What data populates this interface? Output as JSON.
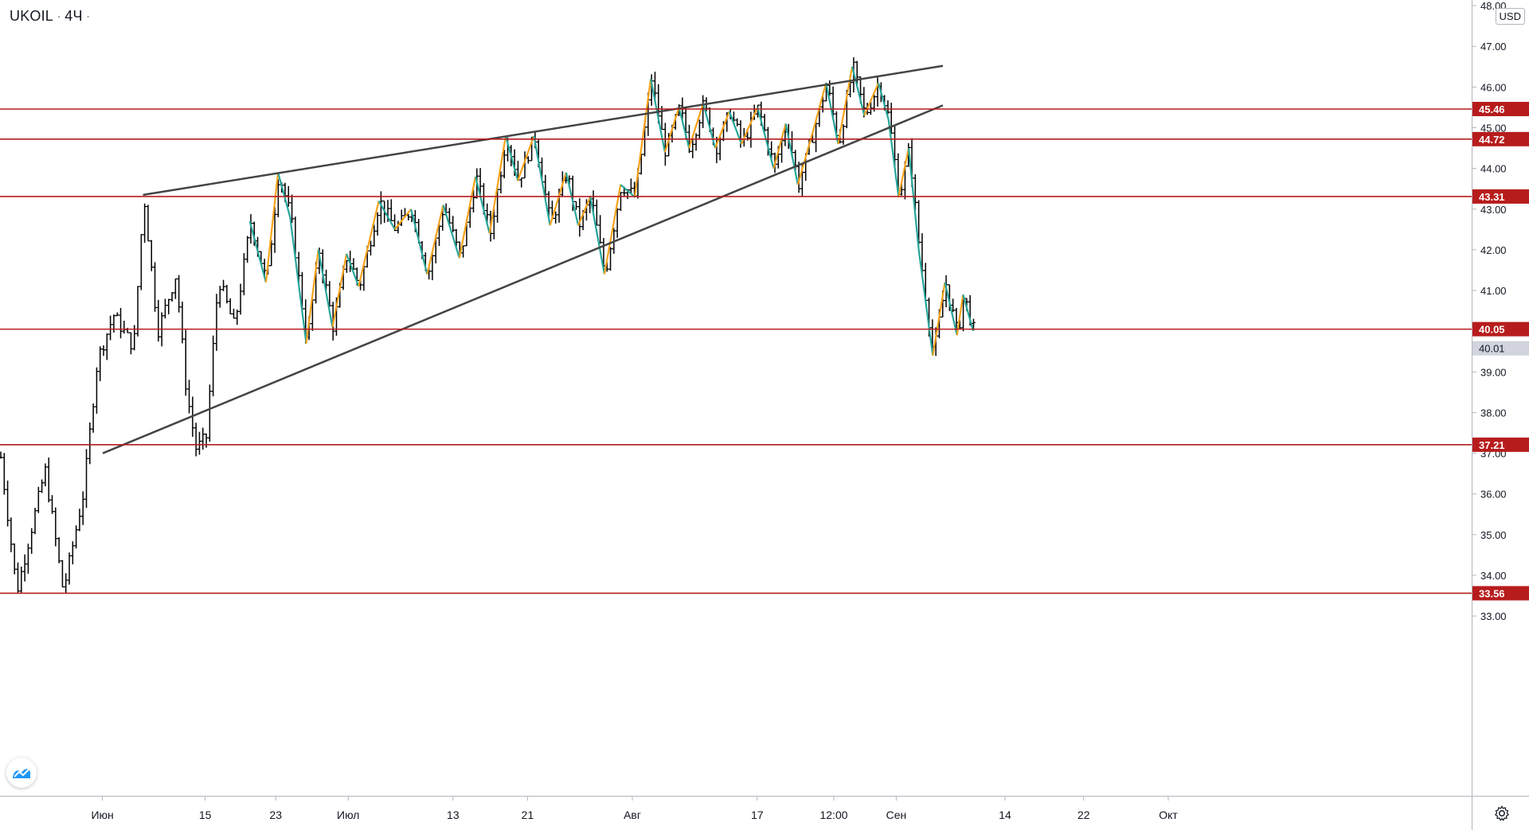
{
  "header": {
    "symbol": "UKOIL",
    "interval": "4Ч",
    "separator": "·"
  },
  "price_axis": {
    "currency": "USD",
    "ticks": [
      "48.00",
      "47.00",
      "46.00",
      "45.00",
      "44.00",
      "43.00",
      "42.00",
      "41.00",
      "39.00",
      "38.00",
      "37.00",
      "36.00",
      "35.00",
      "34.00",
      "33.00"
    ]
  },
  "time_axis": {
    "labels": [
      "Июн",
      "15",
      "23",
      "Июл",
      "13",
      "21",
      "Авг",
      "17",
      "12:00",
      "Сен",
      "14",
      "22",
      "Окт"
    ]
  },
  "colors": {
    "level_line": "#b71c1c",
    "level_badge": "#b71c1c",
    "trendline": "#444444",
    "zigzag_up": "#f7a21b",
    "zigzag_down": "#26a69a",
    "bars": "#000000",
    "current_price_badge": "#d1d4dc"
  },
  "icons": {
    "logo": "tradingview-logo-icon",
    "settings": "gear-icon"
  },
  "chart_data": {
    "type": "ohlc",
    "symbol": "UKOIL",
    "interval": "4Ч",
    "ylim": [
      32.2,
      48.1
    ],
    "current_price": 40.01,
    "horizontal_levels": [
      45.46,
      44.72,
      43.31,
      40.05,
      37.21,
      33.56
    ],
    "trendlines": [
      {
        "name": "",
        "points": [
          [
            7.1,
            43.35
          ],
          [
            46.8,
            46.52
          ]
        ]
      },
      {
        "name": "",
        "points": [
          [
            5.1,
            37.0
          ],
          [
            46.8,
            45.55
          ]
        ]
      }
    ],
    "swing_points": [
      {
        "x": 0,
        "price": 36.9
      },
      {
        "x": 0.8,
        "price": 33.6
      },
      {
        "x": 2.2,
        "price": 36.6
      },
      {
        "x": 3.1,
        "price": 33.6
      },
      {
        "x": 4.1,
        "price": 36.0
      },
      {
        "x": 4.8,
        "price": 39.3
      },
      {
        "x": 5.6,
        "price": 40.4
      },
      {
        "x": 6.6,
        "price": 39.6
      },
      {
        "x": 7.1,
        "price": 43.35
      },
      {
        "x": 7.8,
        "price": 40.0
      },
      {
        "x": 8.7,
        "price": 41.4
      },
      {
        "x": 9.2,
        "price": 38.6
      },
      {
        "x": 9.7,
        "price": 37.1
      },
      {
        "x": 10.2,
        "price": 37.4
      },
      {
        "x": 10.8,
        "price": 41.3
      },
      {
        "x": 11.6,
        "price": 40.1
      },
      {
        "x": 12.4,
        "price": 42.7
      },
      {
        "x": 13.2,
        "price": 41.2
      },
      {
        "x": 13.8,
        "price": 43.9
      },
      {
        "x": 14.4,
        "price": 42.8
      },
      {
        "x": 15.2,
        "price": 39.7
      },
      {
        "x": 15.8,
        "price": 42.0
      },
      {
        "x": 16.5,
        "price": 40.1
      },
      {
        "x": 17.2,
        "price": 41.9
      },
      {
        "x": 17.8,
        "price": 41.1
      },
      {
        "x": 18.8,
        "price": 43.2
      },
      {
        "x": 19.6,
        "price": 42.5
      },
      {
        "x": 20.4,
        "price": 43.0
      },
      {
        "x": 21.2,
        "price": 41.4
      },
      {
        "x": 22.0,
        "price": 43.1
      },
      {
        "x": 22.8,
        "price": 41.8
      },
      {
        "x": 23.6,
        "price": 43.8
      },
      {
        "x": 24.3,
        "price": 42.4
      },
      {
        "x": 25.1,
        "price": 44.8
      },
      {
        "x": 25.7,
        "price": 43.7
      },
      {
        "x": 26.5,
        "price": 44.8
      },
      {
        "x": 27.3,
        "price": 42.6
      },
      {
        "x": 28.1,
        "price": 43.9
      },
      {
        "x": 28.7,
        "price": 42.6
      },
      {
        "x": 29.3,
        "price": 43.3
      },
      {
        "x": 30.0,
        "price": 41.4
      },
      {
        "x": 30.8,
        "price": 43.6
      },
      {
        "x": 31.5,
        "price": 43.3
      },
      {
        "x": 32.3,
        "price": 46.2
      },
      {
        "x": 33.0,
        "price": 44.4
      },
      {
        "x": 33.7,
        "price": 45.5
      },
      {
        "x": 34.2,
        "price": 44.5
      },
      {
        "x": 34.9,
        "price": 45.6
      },
      {
        "x": 35.5,
        "price": 44.5
      },
      {
        "x": 36.2,
        "price": 45.4
      },
      {
        "x": 36.8,
        "price": 44.6
      },
      {
        "x": 37.6,
        "price": 45.5
      },
      {
        "x": 38.4,
        "price": 44.0
      },
      {
        "x": 39.0,
        "price": 45.1
      },
      {
        "x": 39.6,
        "price": 43.6
      },
      {
        "x": 40.4,
        "price": 45.0
      },
      {
        "x": 41.0,
        "price": 46.1
      },
      {
        "x": 41.6,
        "price": 44.6
      },
      {
        "x": 42.3,
        "price": 46.5
      },
      {
        "x": 42.9,
        "price": 45.3
      },
      {
        "x": 43.6,
        "price": 46.1
      },
      {
        "x": 44.1,
        "price": 45.2
      },
      {
        "x": 44.6,
        "price": 43.3
      },
      {
        "x": 45.1,
        "price": 44.5
      },
      {
        "x": 45.6,
        "price": 42.0
      },
      {
        "x": 46.3,
        "price": 39.4
      },
      {
        "x": 46.9,
        "price": 41.2
      },
      {
        "x": 47.5,
        "price": 39.9
      },
      {
        "x": 47.8,
        "price": 40.9
      },
      {
        "x": 48.3,
        "price": 40.01
      }
    ]
  }
}
